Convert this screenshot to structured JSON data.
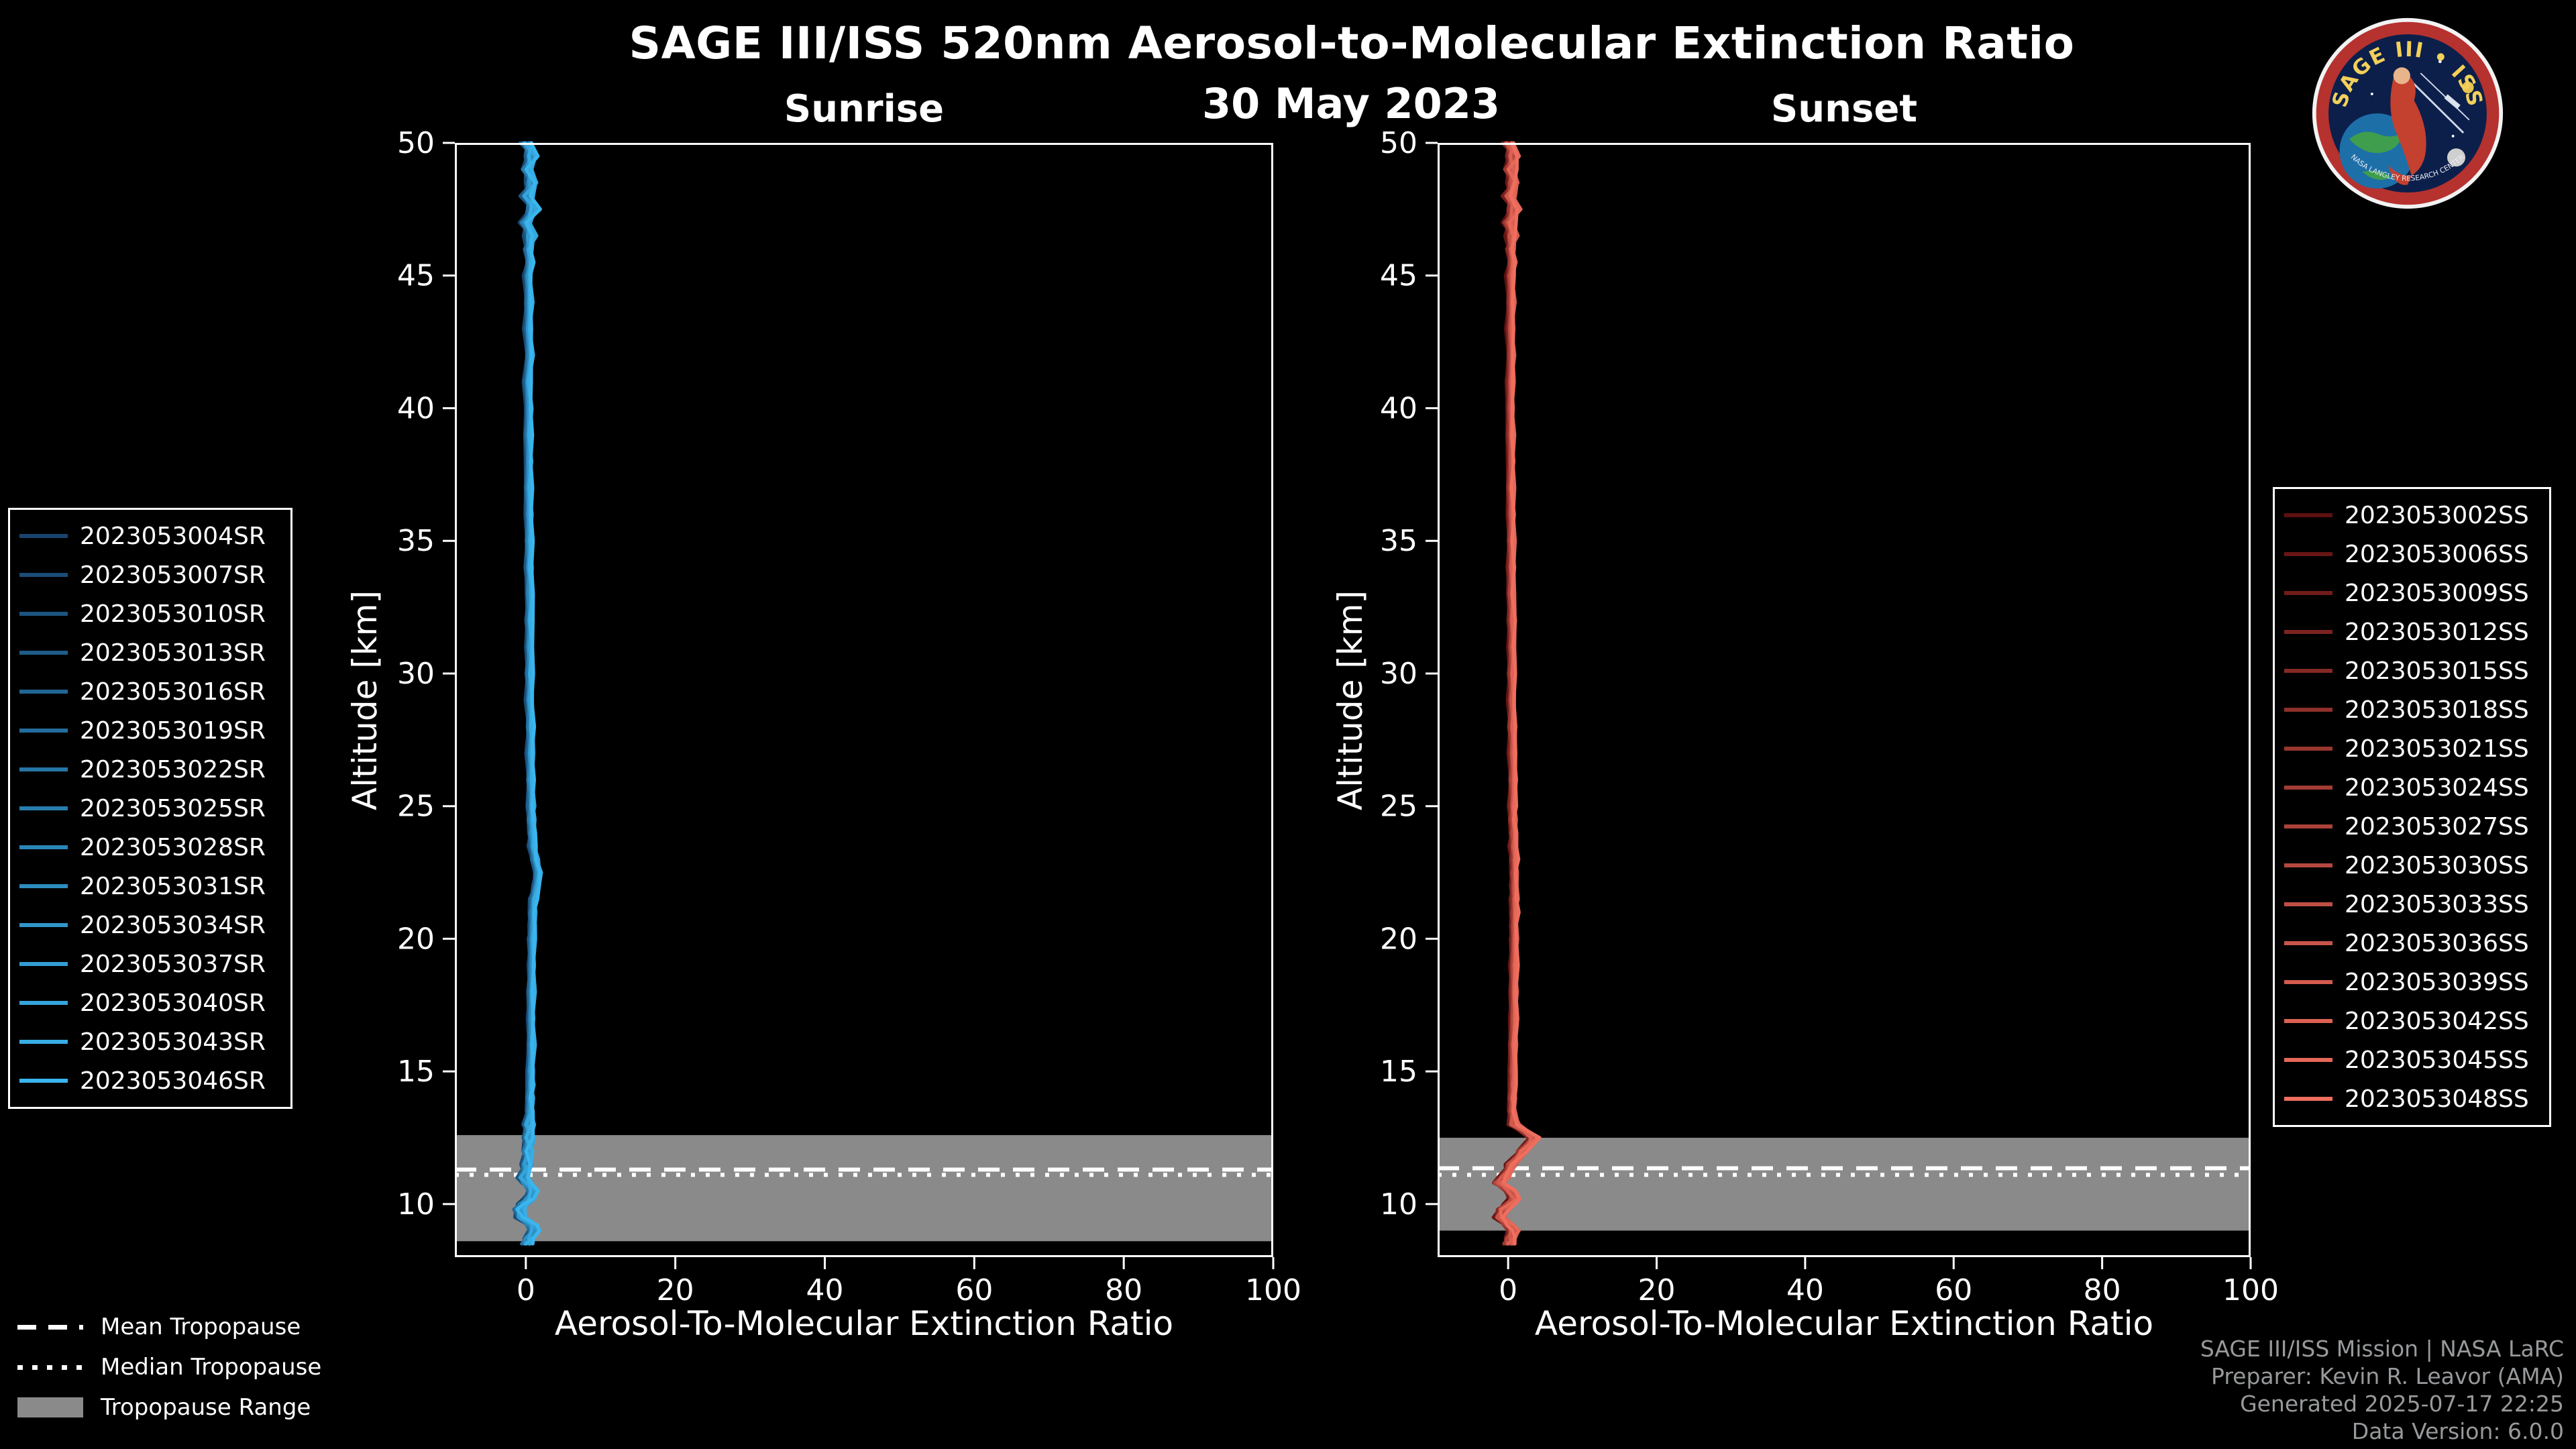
{
  "logo": {
    "text": "SAGE III • ISS",
    "ring_text": "NASA LANGLEY RESEARCH CENTER"
  },
  "tropopause_legend": {
    "mean": "Mean Tropopause",
    "median": "Median Tropopause",
    "range": "Tropopause Range"
  },
  "footer": {
    "line1": "SAGE III/ISS Mission | NASA LaRC",
    "line2": "Preparer: Kevin R. Leavor (AMA)",
    "line3": "Generated 2025-07-17 22:25",
    "line4": "Data Version: 6.0.0"
  },
  "chart_data": {
    "type": "line",
    "title": "SAGE III/ISS 520nm Aerosol-to-Molecular Extinction Ratio",
    "subtitle": "30 May 2023",
    "colors": {
      "background": "#000000",
      "axis": "#ffffff",
      "tropopause_band": "#8a8a8a",
      "mean_tropopause_line": "#ffffff",
      "median_tropopause_line": "#ffffff"
    },
    "altitudes": [
      50,
      49.5,
      49,
      48.5,
      48,
      47.5,
      47,
      46.5,
      46,
      45.5,
      45,
      44,
      43,
      42,
      41,
      40,
      39,
      38,
      37,
      36,
      35,
      34,
      33,
      32,
      31,
      30,
      29,
      28,
      27,
      26,
      25,
      24.5,
      24,
      23.5,
      23,
      22.5,
      22,
      21.5,
      21,
      20.5,
      20,
      19,
      18,
      17,
      16,
      15,
      14.5,
      14,
      13.5,
      13,
      12.5,
      12,
      11.5,
      11,
      10.8,
      10.5,
      10.2,
      10,
      9.8,
      9.5,
      9.2,
      9,
      8.7,
      8.5
    ],
    "panels": [
      {
        "title": "Sunrise",
        "xlabel": "Aerosol-To-Molecular Extinction Ratio",
        "ylabel": "Altitude [km]",
        "xlim": [
          -9.5,
          100
        ],
        "ylim": [
          8,
          50
        ],
        "xticks": [
          0,
          20,
          40,
          60,
          80,
          100
        ],
        "yticks": [
          10,
          15,
          20,
          25,
          30,
          35,
          40,
          45,
          50
        ],
        "tropopause": {
          "mean": 11.3,
          "median": 11.1,
          "range": [
            8.6,
            12.6
          ]
        },
        "values": [
          0.2,
          0.8,
          0.3,
          0.9,
          0.2,
          1.0,
          0.1,
          0.7,
          0.3,
          0.5,
          0.3,
          0.4,
          0.3,
          0.5,
          0.2,
          0.4,
          0.3,
          0.4,
          0.3,
          0.4,
          0.4,
          0.4,
          0.5,
          0.5,
          0.5,
          0.5,
          0.5,
          0.6,
          0.6,
          0.6,
          0.7,
          0.7,
          0.8,
          0.9,
          1.2,
          1.6,
          1.4,
          1.0,
          0.9,
          0.9,
          0.8,
          0.8,
          0.7,
          0.7,
          0.7,
          0.6,
          0.6,
          0.5,
          0.5,
          0.4,
          0.4,
          0.3,
          0.2,
          -0.3,
          0.2,
          1.0,
          0.6,
          -0.2,
          -0.8,
          -0.5,
          0.9,
          1.2,
          0.5,
          0.2
        ],
        "series": [
          {
            "name": "2023053004SR",
            "color": "#17456e"
          },
          {
            "name": "2023053007SR",
            "color": "#1a4d77"
          },
          {
            "name": "2023053010SR",
            "color": "#1c5580"
          },
          {
            "name": "2023053013SR",
            "color": "#1f5d89"
          },
          {
            "name": "2023053016SR",
            "color": "#216593"
          },
          {
            "name": "2023053019SR",
            "color": "#246d9c"
          },
          {
            "name": "2023053022SR",
            "color": "#2675a5"
          },
          {
            "name": "2023053025SR",
            "color": "#297dae"
          },
          {
            "name": "2023053028SR",
            "color": "#2b85b7"
          },
          {
            "name": "2023053031SR",
            "color": "#2e8dc0"
          },
          {
            "name": "2023053034SR",
            "color": "#3095c9"
          },
          {
            "name": "2023053037SR",
            "color": "#339dd2"
          },
          {
            "name": "2023053040SR",
            "color": "#35a5dc"
          },
          {
            "name": "2023053043SR",
            "color": "#38ade5"
          },
          {
            "name": "2023053046SR",
            "color": "#3ab5ee"
          }
        ]
      },
      {
        "title": "Sunset",
        "xlabel": "Aerosol-To-Molecular Extinction Ratio",
        "ylabel": "Altitude [km]",
        "xlim": [
          -9.5,
          100
        ],
        "ylim": [
          8,
          50
        ],
        "xticks": [
          0,
          20,
          40,
          60,
          80,
          100
        ],
        "yticks": [
          10,
          15,
          20,
          25,
          30,
          35,
          40,
          45,
          50
        ],
        "tropopause": {
          "mean": 11.35,
          "median": 11.1,
          "range": [
            9.0,
            12.5
          ]
        },
        "values": [
          0.2,
          0.7,
          0.3,
          0.8,
          0.2,
          0.8,
          0.2,
          0.6,
          0.3,
          0.5,
          0.3,
          0.4,
          0.3,
          0.4,
          0.3,
          0.3,
          0.3,
          0.4,
          0.3,
          0.4,
          0.4,
          0.4,
          0.4,
          0.5,
          0.5,
          0.5,
          0.5,
          0.5,
          0.6,
          0.6,
          0.6,
          0.6,
          0.7,
          0.7,
          0.8,
          0.8,
          0.8,
          0.8,
          0.8,
          0.8,
          0.8,
          0.7,
          0.7,
          0.7,
          0.6,
          0.6,
          0.6,
          0.5,
          0.5,
          0.8,
          3.5,
          2.0,
          0.5,
          -0.5,
          -1.2,
          0.3,
          1.0,
          0.3,
          -0.6,
          -1.0,
          0.2,
          0.8,
          0.4,
          0.2
        ],
        "series": [
          {
            "name": "2023053002SS",
            "color": "#5e1010"
          },
          {
            "name": "2023053006SS",
            "color": "#681615"
          },
          {
            "name": "2023053009SS",
            "color": "#711d1a"
          },
          {
            "name": "2023053012SS",
            "color": "#7b2320"
          },
          {
            "name": "2023053015SS",
            "color": "#852925"
          },
          {
            "name": "2023053018SS",
            "color": "#8e2f2a"
          },
          {
            "name": "2023053021SS",
            "color": "#98362f"
          },
          {
            "name": "2023053024SS",
            "color": "#a23c34"
          },
          {
            "name": "2023053027SS",
            "color": "#ab423a"
          },
          {
            "name": "2023053030SS",
            "color": "#b5483f"
          },
          {
            "name": "2023053033SS",
            "color": "#bf4f44"
          },
          {
            "name": "2023053036SS",
            "color": "#c85549"
          },
          {
            "name": "2023053039SS",
            "color": "#d25b4e"
          },
          {
            "name": "2023053042SS",
            "color": "#dc6154"
          },
          {
            "name": "2023053045SS",
            "color": "#e56859"
          },
          {
            "name": "2023053048SS",
            "color": "#ef6e5e"
          }
        ]
      }
    ]
  }
}
